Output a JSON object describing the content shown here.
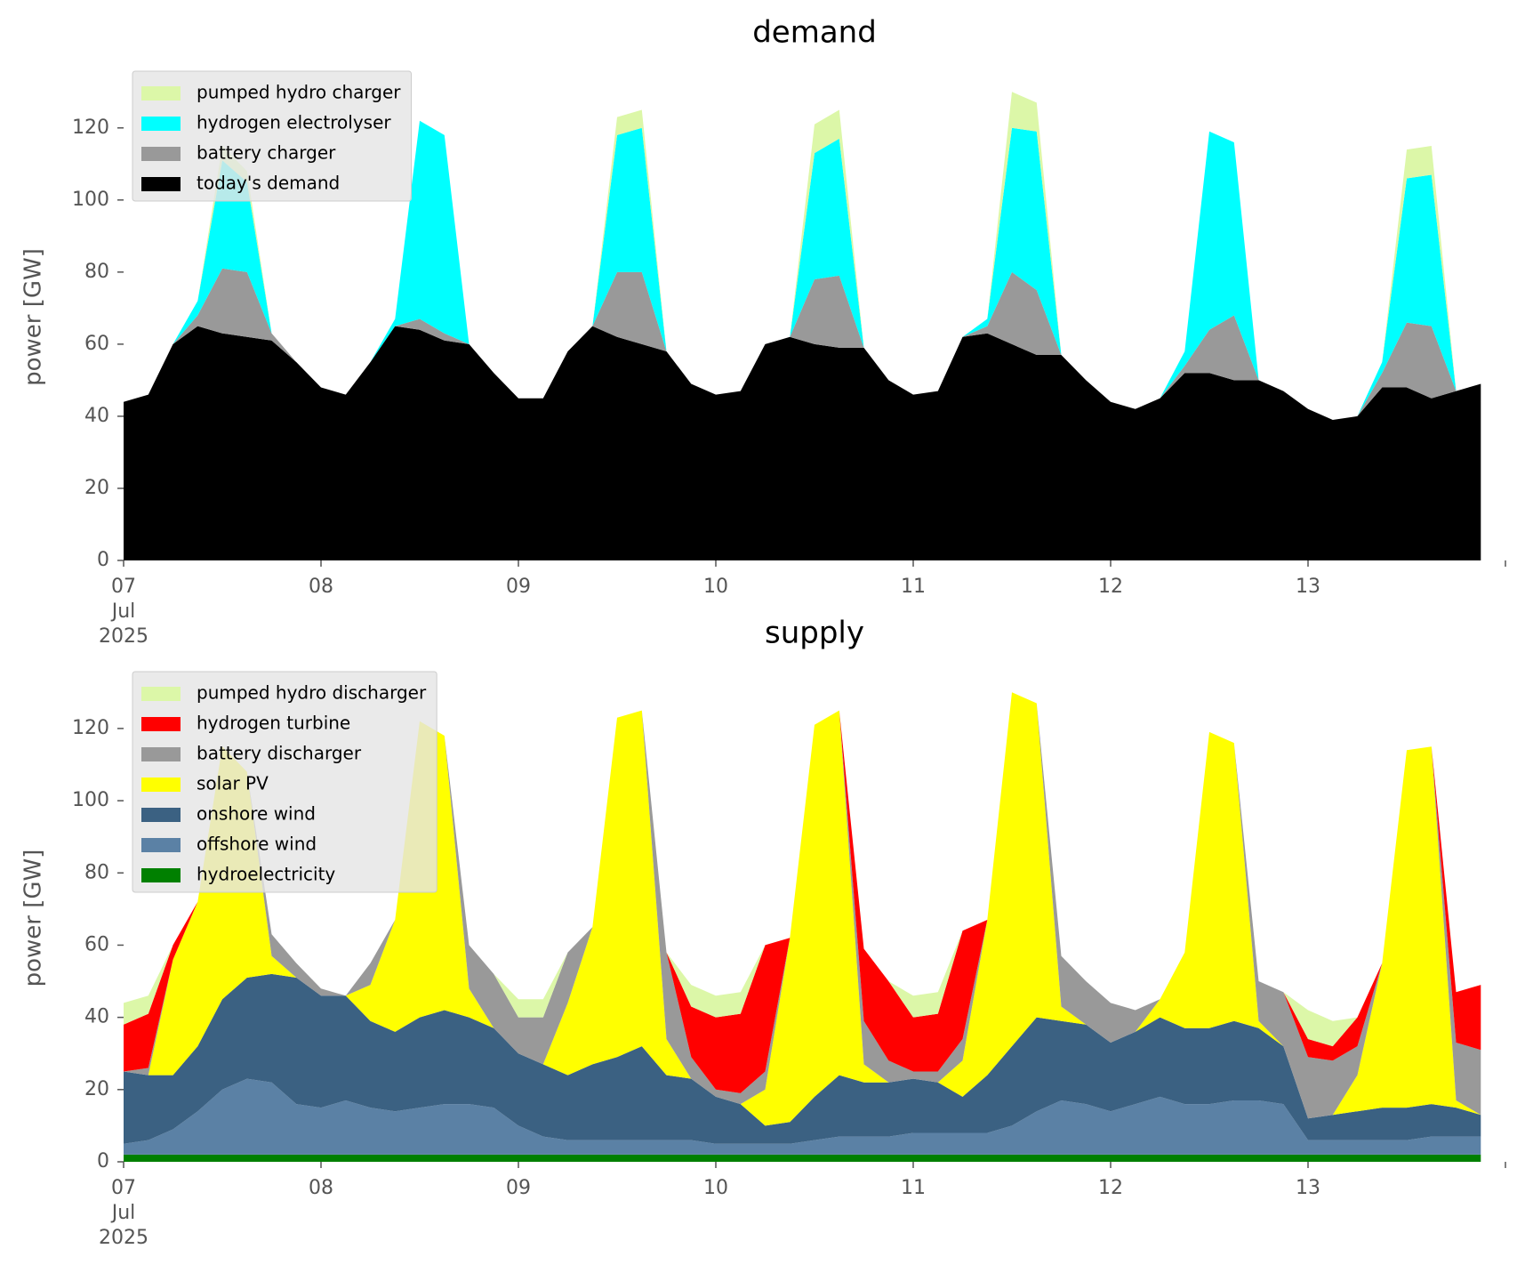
{
  "chart_data": [
    {
      "type": "area",
      "title": "demand",
      "ylabel": "power [GW]",
      "legend": "upper left",
      "xlim": [
        "2025-07-07 00:00",
        "2025-07-14 00:00"
      ],
      "xticks": [
        {
          "value": "2025-07-07",
          "label": "07\nJul\n2025"
        },
        {
          "value": "2025-07-08",
          "label": "08"
        },
        {
          "value": "2025-07-09",
          "label": "09"
        },
        {
          "value": "2025-07-10",
          "label": "10"
        },
        {
          "value": "2025-07-11",
          "label": "11"
        },
        {
          "value": "2025-07-12",
          "label": "12"
        },
        {
          "value": "2025-07-13",
          "label": "13"
        }
      ],
      "ylim": [
        0,
        135
      ],
      "yticks": [
        0,
        20,
        40,
        60,
        80,
        100,
        120
      ],
      "x": [
        "2025-07-07 00:00",
        "2025-07-07 03:00",
        "2025-07-07 06:00",
        "2025-07-07 09:00",
        "2025-07-07 12:00",
        "2025-07-07 15:00",
        "2025-07-07 18:00",
        "2025-07-07 21:00",
        "2025-07-08 00:00",
        "2025-07-08 03:00",
        "2025-07-08 06:00",
        "2025-07-08 09:00",
        "2025-07-08 12:00",
        "2025-07-08 15:00",
        "2025-07-08 18:00",
        "2025-07-08 21:00",
        "2025-07-09 00:00",
        "2025-07-09 03:00",
        "2025-07-09 06:00",
        "2025-07-09 09:00",
        "2025-07-09 12:00",
        "2025-07-09 15:00",
        "2025-07-09 18:00",
        "2025-07-09 21:00",
        "2025-07-10 00:00",
        "2025-07-10 03:00",
        "2025-07-10 06:00",
        "2025-07-10 09:00",
        "2025-07-10 12:00",
        "2025-07-10 15:00",
        "2025-07-10 18:00",
        "2025-07-10 21:00",
        "2025-07-11 00:00",
        "2025-07-11 03:00",
        "2025-07-11 06:00",
        "2025-07-11 09:00",
        "2025-07-11 12:00",
        "2025-07-11 15:00",
        "2025-07-11 18:00",
        "2025-07-11 21:00",
        "2025-07-12 00:00",
        "2025-07-12 03:00",
        "2025-07-12 06:00",
        "2025-07-12 09:00",
        "2025-07-12 12:00",
        "2025-07-12 15:00",
        "2025-07-12 18:00",
        "2025-07-12 21:00",
        "2025-07-13 00:00",
        "2025-07-13 03:00",
        "2025-07-13 06:00",
        "2025-07-13 09:00",
        "2025-07-13 12:00",
        "2025-07-13 15:00",
        "2025-07-13 18:00",
        "2025-07-13 21:00"
      ],
      "series": [
        {
          "name": "today's demand",
          "color": "#000000",
          "values": [
            44,
            46,
            60,
            65,
            63,
            62,
            61,
            55,
            48,
            46,
            55,
            65,
            64,
            61,
            60,
            52,
            45,
            45,
            58,
            65,
            62,
            60,
            58,
            49,
            46,
            47,
            60,
            62,
            60,
            59,
            59,
            50,
            46,
            47,
            62,
            63,
            60,
            57,
            57,
            50,
            44,
            42,
            45,
            52,
            52,
            50,
            50,
            47,
            42,
            39,
            40,
            48,
            48,
            45,
            47,
            49
          ]
        },
        {
          "name": "battery charger",
          "color": "#999999",
          "values": [
            0,
            0,
            0,
            3,
            18,
            18,
            2,
            0,
            0,
            0,
            0,
            0,
            3,
            2,
            0,
            0,
            0,
            0,
            0,
            0,
            18,
            20,
            0,
            0,
            0,
            0,
            0,
            0,
            18,
            20,
            0,
            0,
            0,
            0,
            0,
            2,
            20,
            18,
            0,
            0,
            0,
            0,
            0,
            2,
            12,
            18,
            0,
            0,
            0,
            0,
            0,
            4,
            18,
            20,
            0,
            0
          ]
        },
        {
          "name": "hydrogen electrolyser",
          "color": "#00ffff",
          "values": [
            0,
            0,
            0,
            4,
            30,
            25,
            0,
            0,
            0,
            0,
            0,
            2,
            55,
            55,
            0,
            0,
            0,
            0,
            0,
            0,
            38,
            40,
            0,
            0,
            0,
            0,
            0,
            0,
            35,
            38,
            0,
            0,
            0,
            0,
            0,
            2,
            40,
            44,
            0,
            0,
            0,
            0,
            0,
            4,
            55,
            48,
            0,
            0,
            0,
            0,
            0,
            3,
            40,
            42,
            0,
            0
          ]
        },
        {
          "name": "pumped hydro charger",
          "color": "#dcf7a8",
          "values": [
            0,
            0,
            0,
            0,
            4,
            3,
            0,
            0,
            0,
            0,
            0,
            0,
            0,
            0,
            0,
            0,
            0,
            0,
            0,
            0,
            5,
            5,
            0,
            0,
            0,
            0,
            0,
            0,
            8,
            8,
            0,
            0,
            0,
            0,
            0,
            0,
            10,
            8,
            0,
            0,
            0,
            0,
            0,
            0,
            0,
            0,
            0,
            0,
            0,
            0,
            0,
            0,
            8,
            8,
            0,
            0
          ]
        }
      ]
    },
    {
      "type": "area",
      "title": "supply",
      "ylabel": "power [GW]",
      "legend": "upper left",
      "xlim": [
        "2025-07-07 00:00",
        "2025-07-14 00:00"
      ],
      "xticks": [
        {
          "value": "2025-07-07",
          "label": "07\nJul\n2025"
        },
        {
          "value": "2025-07-08",
          "label": "08"
        },
        {
          "value": "2025-07-09",
          "label": "09"
        },
        {
          "value": "2025-07-10",
          "label": "10"
        },
        {
          "value": "2025-07-11",
          "label": "11"
        },
        {
          "value": "2025-07-12",
          "label": "12"
        },
        {
          "value": "2025-07-13",
          "label": "13"
        }
      ],
      "ylim": [
        0,
        135
      ],
      "yticks": [
        0,
        20,
        40,
        60,
        80,
        100,
        120
      ],
      "x": [
        "2025-07-07 00:00",
        "2025-07-07 03:00",
        "2025-07-07 06:00",
        "2025-07-07 09:00",
        "2025-07-07 12:00",
        "2025-07-07 15:00",
        "2025-07-07 18:00",
        "2025-07-07 21:00",
        "2025-07-08 00:00",
        "2025-07-08 03:00",
        "2025-07-08 06:00",
        "2025-07-08 09:00",
        "2025-07-08 12:00",
        "2025-07-08 15:00",
        "2025-07-08 18:00",
        "2025-07-08 21:00",
        "2025-07-09 00:00",
        "2025-07-09 03:00",
        "2025-07-09 06:00",
        "2025-07-09 09:00",
        "2025-07-09 12:00",
        "2025-07-09 15:00",
        "2025-07-09 18:00",
        "2025-07-09 21:00",
        "2025-07-10 00:00",
        "2025-07-10 03:00",
        "2025-07-10 06:00",
        "2025-07-10 09:00",
        "2025-07-10 12:00",
        "2025-07-10 15:00",
        "2025-07-10 18:00",
        "2025-07-10 21:00",
        "2025-07-11 00:00",
        "2025-07-11 03:00",
        "2025-07-11 06:00",
        "2025-07-11 09:00",
        "2025-07-11 12:00",
        "2025-07-11 15:00",
        "2025-07-11 18:00",
        "2025-07-11 21:00",
        "2025-07-12 00:00",
        "2025-07-12 03:00",
        "2025-07-12 06:00",
        "2025-07-12 09:00",
        "2025-07-12 12:00",
        "2025-07-12 15:00",
        "2025-07-12 18:00",
        "2025-07-12 21:00",
        "2025-07-13 00:00",
        "2025-07-13 03:00",
        "2025-07-13 06:00",
        "2025-07-13 09:00",
        "2025-07-13 12:00",
        "2025-07-13 15:00",
        "2025-07-13 18:00",
        "2025-07-13 21:00"
      ],
      "series": [
        {
          "name": "hydroelectricity",
          "color": "#008000",
          "values": [
            2,
            2,
            2,
            2,
            2,
            2,
            2,
            2,
            2,
            2,
            2,
            2,
            2,
            2,
            2,
            2,
            2,
            2,
            2,
            2,
            2,
            2,
            2,
            2,
            2,
            2,
            2,
            2,
            2,
            2,
            2,
            2,
            2,
            2,
            2,
            2,
            2,
            2,
            2,
            2,
            2,
            2,
            2,
            2,
            2,
            2,
            2,
            2,
            2,
            2,
            2,
            2,
            2,
            2,
            2,
            2
          ]
        },
        {
          "name": "offshore wind",
          "color": "#5b81a5",
          "values": [
            3,
            4,
            7,
            12,
            18,
            21,
            20,
            14,
            13,
            15,
            13,
            12,
            13,
            14,
            14,
            13,
            8,
            5,
            4,
            4,
            4,
            4,
            4,
            4,
            3,
            3,
            3,
            3,
            4,
            5,
            5,
            5,
            6,
            6,
            6,
            6,
            8,
            12,
            15,
            14,
            12,
            14,
            16,
            14,
            14,
            15,
            15,
            14,
            4,
            4,
            4,
            4,
            4,
            5,
            5,
            5
          ]
        },
        {
          "name": "onshore wind",
          "color": "#3b6182",
          "values": [
            20,
            18,
            15,
            18,
            25,
            28,
            30,
            35,
            31,
            29,
            24,
            22,
            25,
            26,
            24,
            22,
            20,
            20,
            18,
            21,
            23,
            26,
            18,
            17,
            13,
            11,
            5,
            6,
            12,
            17,
            15,
            15,
            15,
            14,
            10,
            16,
            22,
            26,
            22,
            22,
            19,
            20,
            22,
            21,
            21,
            22,
            20,
            16,
            6,
            7,
            8,
            9,
            9,
            9,
            8,
            6
          ]
        },
        {
          "name": "solar PV",
          "color": "#ffff00",
          "values": [
            0,
            0,
            32,
            40,
            70,
            57,
            5,
            0,
            0,
            0,
            10,
            31,
            82,
            76,
            8,
            0,
            0,
            0,
            20,
            38,
            94,
            93,
            10,
            0,
            0,
            0,
            10,
            51,
            103,
            101,
            5,
            0,
            0,
            0,
            10,
            43,
            98,
            87,
            4,
            0,
            0,
            0,
            5,
            21,
            82,
            77,
            2,
            0,
            0,
            0,
            10,
            40,
            99,
            99,
            2,
            0
          ]
        },
        {
          "name": "battery discharger",
          "color": "#999999",
          "values": [
            0,
            2,
            0,
            0,
            0,
            0,
            6,
            4,
            2,
            0,
            6,
            0,
            0,
            0,
            12,
            15,
            10,
            13,
            14,
            0,
            0,
            0,
            24,
            6,
            2,
            3,
            5,
            0,
            0,
            0,
            12,
            6,
            2,
            3,
            6,
            0,
            0,
            0,
            14,
            12,
            11,
            6,
            0,
            0,
            0,
            0,
            11,
            15,
            17,
            15,
            8,
            0,
            0,
            0,
            16,
            18
          ]
        },
        {
          "name": "hydrogen turbine",
          "color": "#ff0000",
          "values": [
            13,
            15,
            4,
            0,
            0,
            0,
            0,
            0,
            0,
            0,
            0,
            0,
            0,
            0,
            0,
            0,
            0,
            0,
            0,
            0,
            0,
            0,
            0,
            14,
            20,
            22,
            35,
            0,
            0,
            0,
            20,
            22,
            15,
            16,
            30,
            0,
            0,
            0,
            0,
            0,
            0,
            0,
            0,
            0,
            0,
            0,
            0,
            0,
            5,
            4,
            8,
            0,
            0,
            0,
            14,
            18
          ]
        },
        {
          "name": "pumped hydro discharger",
          "color": "#dcf7a8",
          "values": [
            6,
            5,
            0,
            0,
            0,
            0,
            0,
            0,
            0,
            0,
            0,
            0,
            0,
            0,
            0,
            0,
            5,
            5,
            0,
            0,
            0,
            0,
            0,
            6,
            6,
            6,
            0,
            0,
            0,
            0,
            0,
            0,
            6,
            6,
            0,
            0,
            0,
            0,
            0,
            0,
            0,
            0,
            0,
            0,
            0,
            0,
            0,
            0,
            8,
            7,
            0,
            0,
            0,
            0,
            0,
            0
          ]
        }
      ]
    }
  ]
}
